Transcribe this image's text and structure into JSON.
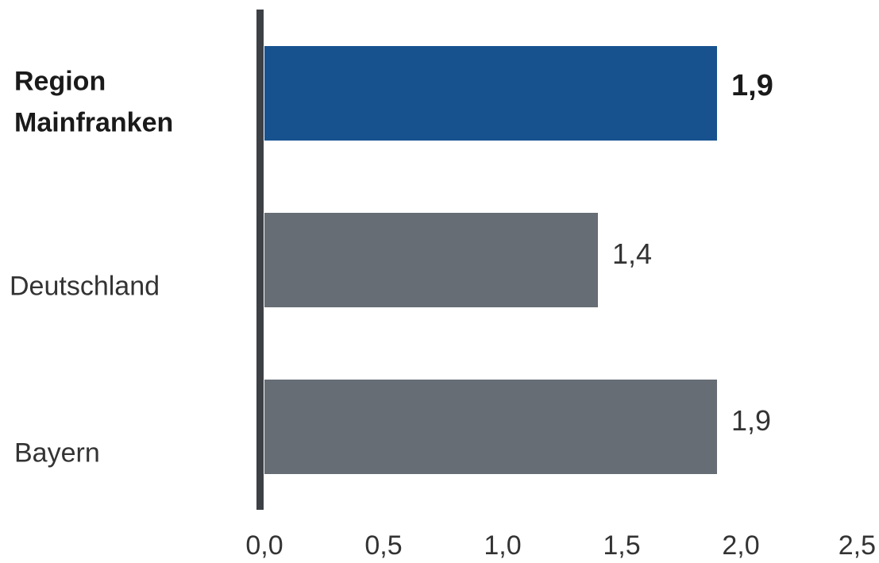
{
  "chart_data": {
    "type": "bar",
    "orientation": "horizontal",
    "categories": [
      "Region Mainfranken",
      "Deutschland",
      "Bayern"
    ],
    "values": [
      1.9,
      1.4,
      1.9
    ],
    "value_labels": [
      "1,9",
      "1,4",
      "1,9"
    ],
    "highlight_category": "Region Mainfranken",
    "xlim": [
      0,
      2.5
    ],
    "x_ticks": [
      0,
      0.5,
      1.0,
      1.5,
      2.0,
      2.5
    ],
    "x_tick_labels": [
      "0,0",
      "0,5",
      "1,0",
      "1,5",
      "2,0",
      "2,5"
    ],
    "title": "",
    "xlabel": "",
    "ylabel": "",
    "grid": false,
    "legend": "none",
    "colors": {
      "highlight_bar": "#17528f",
      "default_bar": "#676d75",
      "axis_line": "#3d4045",
      "highlight_text": "#1a1a1a",
      "default_text": "#333333",
      "tick_text": "#333333"
    }
  }
}
